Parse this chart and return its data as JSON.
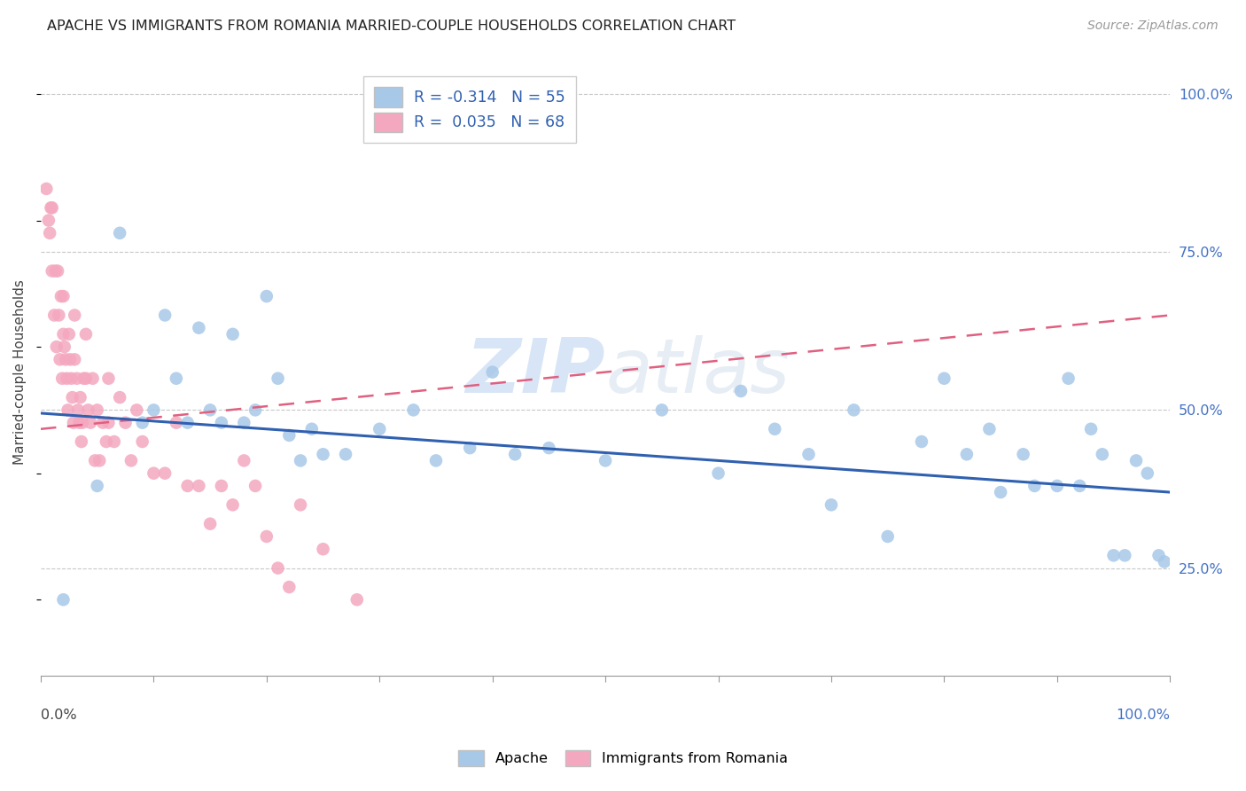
{
  "title": "APACHE VS IMMIGRANTS FROM ROMANIA MARRIED-COUPLE HOUSEHOLDS CORRELATION CHART",
  "source": "Source: ZipAtlas.com",
  "ylabel": "Married-couple Households",
  "apache_color": "#a8c8e8",
  "romania_color": "#f4a8c0",
  "apache_line_color": "#3060b0",
  "romania_line_color": "#e06080",
  "background_color": "#ffffff",
  "watermark_zip": "ZIP",
  "watermark_atlas": "atlas",
  "apache_R": -0.314,
  "apache_N": 55,
  "romania_R": 0.035,
  "romania_N": 68,
  "apache_line_x0": 0.0,
  "apache_line_y0": 0.495,
  "apache_line_x1": 1.0,
  "apache_line_y1": 0.37,
  "romania_line_x0": 0.0,
  "romania_line_y0": 0.47,
  "romania_line_x1": 1.0,
  "romania_line_y1": 0.65,
  "apache_x": [
    0.02,
    0.05,
    0.07,
    0.09,
    0.1,
    0.11,
    0.12,
    0.13,
    0.14,
    0.15,
    0.16,
    0.17,
    0.18,
    0.19,
    0.2,
    0.21,
    0.22,
    0.23,
    0.24,
    0.25,
    0.27,
    0.3,
    0.33,
    0.35,
    0.38,
    0.4,
    0.42,
    0.45,
    0.5,
    0.55,
    0.6,
    0.62,
    0.65,
    0.68,
    0.7,
    0.72,
    0.75,
    0.78,
    0.8,
    0.82,
    0.84,
    0.85,
    0.87,
    0.88,
    0.9,
    0.91,
    0.92,
    0.93,
    0.94,
    0.95,
    0.96,
    0.97,
    0.98,
    0.99,
    0.995
  ],
  "apache_y": [
    0.2,
    0.38,
    0.78,
    0.48,
    0.5,
    0.65,
    0.55,
    0.48,
    0.63,
    0.5,
    0.48,
    0.62,
    0.48,
    0.5,
    0.68,
    0.55,
    0.46,
    0.42,
    0.47,
    0.43,
    0.43,
    0.47,
    0.5,
    0.42,
    0.44,
    0.56,
    0.43,
    0.44,
    0.42,
    0.5,
    0.4,
    0.53,
    0.47,
    0.43,
    0.35,
    0.5,
    0.3,
    0.45,
    0.55,
    0.43,
    0.47,
    0.37,
    0.43,
    0.38,
    0.38,
    0.55,
    0.38,
    0.47,
    0.43,
    0.27,
    0.27,
    0.42,
    0.4,
    0.27,
    0.26
  ],
  "romania_x": [
    0.005,
    0.007,
    0.008,
    0.009,
    0.01,
    0.01,
    0.012,
    0.013,
    0.014,
    0.015,
    0.016,
    0.017,
    0.018,
    0.019,
    0.02,
    0.02,
    0.021,
    0.022,
    0.023,
    0.024,
    0.025,
    0.026,
    0.027,
    0.028,
    0.029,
    0.03,
    0.03,
    0.032,
    0.033,
    0.034,
    0.035,
    0.036,
    0.037,
    0.038,
    0.04,
    0.04,
    0.042,
    0.044,
    0.046,
    0.048,
    0.05,
    0.052,
    0.055,
    0.058,
    0.06,
    0.06,
    0.065,
    0.07,
    0.075,
    0.08,
    0.085,
    0.09,
    0.1,
    0.11,
    0.12,
    0.13,
    0.14,
    0.15,
    0.16,
    0.17,
    0.18,
    0.19,
    0.2,
    0.21,
    0.22,
    0.23,
    0.25,
    0.28
  ],
  "romania_y": [
    0.85,
    0.8,
    0.78,
    0.82,
    0.82,
    0.72,
    0.65,
    0.72,
    0.6,
    0.72,
    0.65,
    0.58,
    0.68,
    0.55,
    0.62,
    0.68,
    0.6,
    0.58,
    0.55,
    0.5,
    0.62,
    0.58,
    0.55,
    0.52,
    0.48,
    0.58,
    0.65,
    0.55,
    0.5,
    0.48,
    0.52,
    0.45,
    0.48,
    0.55,
    0.55,
    0.62,
    0.5,
    0.48,
    0.55,
    0.42,
    0.5,
    0.42,
    0.48,
    0.45,
    0.55,
    0.48,
    0.45,
    0.52,
    0.48,
    0.42,
    0.5,
    0.45,
    0.4,
    0.4,
    0.48,
    0.38,
    0.38,
    0.32,
    0.38,
    0.35,
    0.42,
    0.38,
    0.3,
    0.25,
    0.22,
    0.35,
    0.28,
    0.2
  ],
  "ylim_min": 0.08,
  "ylim_max": 1.04,
  "xlim_min": 0.0,
  "xlim_max": 1.0,
  "gridline_vals": [
    0.25,
    0.5,
    0.75,
    1.0
  ],
  "xtick_vals": [
    0.0,
    0.1,
    0.2,
    0.3,
    0.4,
    0.5,
    0.6,
    0.7,
    0.8,
    0.9,
    1.0
  ],
  "right_ytick_vals": [
    1.0,
    0.75,
    0.5,
    0.25
  ],
  "right_ytick_labels": [
    "100.0%",
    "75.0%",
    "50.0%",
    "25.0%"
  ],
  "right_ytick_color": "#4472c4",
  "legend_line1": "R = -0.314   N = 55",
  "legend_line2": "R =  0.035   N = 68",
  "legend_text_color": "#3060b0",
  "bottom_legend_apache": "Apache",
  "bottom_legend_romania": "Immigrants from Romania"
}
